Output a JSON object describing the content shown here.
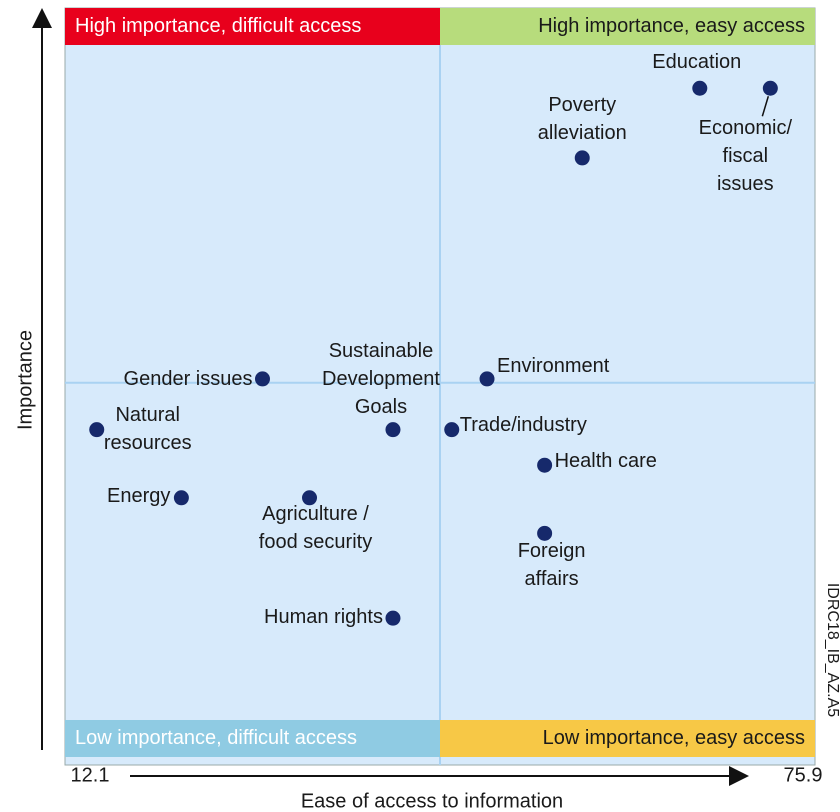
{
  "chart_data": {
    "type": "scatter",
    "x_label": "Ease of access to information",
    "y_label": "Importance",
    "xlim": [
      12.1,
      75.9
    ],
    "xticks": [
      12.1,
      75.9
    ],
    "ylim": [
      0,
      100
    ],
    "dividers": {
      "x": 44,
      "y": 50.5
    },
    "quadrants": [
      {
        "label": "High importance, difficult access",
        "color": "#e8001c"
      },
      {
        "label": "High importance, easy access",
        "color": "#b7dc7c"
      },
      {
        "label": "Low importance, difficult access",
        "color": "#8fcbe3"
      },
      {
        "label": "Low importance, easy access",
        "color": "#f7c846"
      }
    ],
    "point_color": "#16296b",
    "background": "#d7eafb",
    "source_id": "IDRC18_IB_AZ.A5",
    "points": [
      {
        "label": "Education",
        "x": 66.1,
        "y": 89.4
      },
      {
        "label": "Economic/\nfiscal\nissues",
        "x": 72.1,
        "y": 89.4
      },
      {
        "label": "Poverty\nalleviation",
        "x": 56.1,
        "y": 80.2
      },
      {
        "label": "Environment",
        "x": 48.0,
        "y": 51.0
      },
      {
        "label": "Gender issues",
        "x": 28.9,
        "y": 51.0
      },
      {
        "label": "Natural\nresources",
        "x": 14.8,
        "y": 44.3
      },
      {
        "label": "Sustainable\nDevelopment\nGoals",
        "x": 40.0,
        "y": 44.3
      },
      {
        "label": "Trade/industry",
        "x": 45.0,
        "y": 44.3
      },
      {
        "label": "Health care",
        "x": 52.9,
        "y": 39.6
      },
      {
        "label": "Energy",
        "x": 22.0,
        "y": 35.3
      },
      {
        "label": "Agriculture /\nfood security",
        "x": 32.9,
        "y": 35.3
      },
      {
        "label": "Foreign\naffairs",
        "x": 52.9,
        "y": 30.6
      },
      {
        "label": "Human rights",
        "x": 40.0,
        "y": 19.4
      }
    ]
  }
}
